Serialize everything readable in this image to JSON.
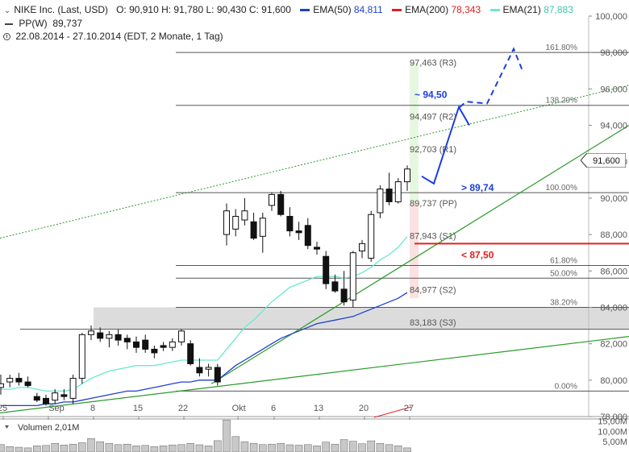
{
  "header": {
    "symbol": "NIKE Inc. (Last, USD)",
    "ohlc": "O: 90,910  H: 91,780  L: 90,430  C: 91,600",
    "ema50_label": "EMA(50)",
    "ema50_value": "84,811",
    "ema200_label": "EMA(200)",
    "ema200_value": "78,343",
    "ema21_label": "EMA(21)",
    "ema21_value": "87,883",
    "pp_label": "PP(W)",
    "pp_value": "89,737",
    "range": "22.08.2014 - 27.10.2014 (EDT, 2 Monate, 1 Tag)"
  },
  "colors": {
    "ema50": "#1f3fd0",
    "ema200": "#e02020",
    "ema21": "#6be8d0",
    "up_candle": "#ffffff",
    "down_candle": "#111111",
    "trend_green": "#2a9a2a",
    "projection": "#1a3fe0"
  },
  "chart_data": {
    "type": "candlestick",
    "y_axis": {
      "min": 78000,
      "max": 100000,
      "ticks": [
        "100,000",
        "98,000",
        "96,000",
        "94,000",
        "92,000",
        "90,000",
        "88,000",
        "86,000",
        "84,000",
        "82,000",
        "80,000",
        "78,000"
      ],
      "tick_values": [
        100000,
        98000,
        96000,
        94000,
        92000,
        90000,
        88000,
        86000,
        84000,
        82000,
        80000,
        78000
      ]
    },
    "x_labels": [
      {
        "i": 0,
        "label": "25"
      },
      {
        "i": 5,
        "label": "Sep"
      },
      {
        "i": 10,
        "label": "8"
      },
      {
        "i": 15,
        "label": "15"
      },
      {
        "i": 20,
        "label": "22"
      },
      {
        "i": 26,
        "label": "Okt"
      },
      {
        "i": 30,
        "label": "6"
      },
      {
        "i": 35,
        "label": "13"
      },
      {
        "i": 40,
        "label": "20"
      },
      {
        "i": 45,
        "label": "27"
      }
    ],
    "candles": [
      {
        "o": 79600,
        "h": 80300,
        "l": 79200,
        "c": 79800
      },
      {
        "o": 79900,
        "h": 80300,
        "l": 79600,
        "c": 80100
      },
      {
        "o": 80100,
        "h": 80400,
        "l": 79700,
        "c": 79900
      },
      {
        "o": 79900,
        "h": 80200,
        "l": 79600,
        "c": 79700
      },
      {
        "o": 79100,
        "h": 79300,
        "l": 78800,
        "c": 78900
      },
      {
        "o": 79000,
        "h": 79200,
        "l": 78600,
        "c": 78700
      },
      {
        "o": 78900,
        "h": 79500,
        "l": 78700,
        "c": 79300
      },
      {
        "o": 79200,
        "h": 79500,
        "l": 78900,
        "c": 79100
      },
      {
        "o": 79000,
        "h": 80300,
        "l": 78700,
        "c": 80100
      },
      {
        "o": 80100,
        "h": 82600,
        "l": 79800,
        "c": 82500
      },
      {
        "o": 82500,
        "h": 83000,
        "l": 82200,
        "c": 82700
      },
      {
        "o": 82600,
        "h": 82900,
        "l": 82100,
        "c": 82300
      },
      {
        "o": 82300,
        "h": 82700,
        "l": 81800,
        "c": 82500
      },
      {
        "o": 82500,
        "h": 82800,
        "l": 81900,
        "c": 82200
      },
      {
        "o": 82300,
        "h": 82500,
        "l": 81700,
        "c": 82100
      },
      {
        "o": 82100,
        "h": 82400,
        "l": 81500,
        "c": 81800
      },
      {
        "o": 82200,
        "h": 82500,
        "l": 81500,
        "c": 81700
      },
      {
        "o": 81700,
        "h": 81900,
        "l": 81200,
        "c": 81500
      },
      {
        "o": 81900,
        "h": 82100,
        "l": 81600,
        "c": 81800
      },
      {
        "o": 81800,
        "h": 82300,
        "l": 81600,
        "c": 82100
      },
      {
        "o": 82100,
        "h": 82800,
        "l": 81900,
        "c": 82700
      },
      {
        "o": 82000,
        "h": 82200,
        "l": 80800,
        "c": 80900
      },
      {
        "o": 80700,
        "h": 81200,
        "l": 80200,
        "c": 80400
      },
      {
        "o": 80600,
        "h": 80900,
        "l": 80200,
        "c": 80700
      },
      {
        "o": 80700,
        "h": 80900,
        "l": 79700,
        "c": 79900
      },
      {
        "o": 88000,
        "h": 89700,
        "l": 87400,
        "c": 89300
      },
      {
        "o": 88300,
        "h": 89400,
        "l": 87900,
        "c": 89000
      },
      {
        "o": 88800,
        "h": 90000,
        "l": 88500,
        "c": 89300
      },
      {
        "o": 88700,
        "h": 89200,
        "l": 87700,
        "c": 87800
      },
      {
        "o": 87900,
        "h": 89200,
        "l": 87000,
        "c": 88900
      },
      {
        "o": 89600,
        "h": 90300,
        "l": 89300,
        "c": 90200
      },
      {
        "o": 90200,
        "h": 90400,
        "l": 89000,
        "c": 89100
      },
      {
        "o": 89000,
        "h": 89500,
        "l": 87900,
        "c": 88200
      },
      {
        "o": 88200,
        "h": 88700,
        "l": 87700,
        "c": 88100
      },
      {
        "o": 88500,
        "h": 88900,
        "l": 87200,
        "c": 87400
      },
      {
        "o": 87300,
        "h": 87600,
        "l": 86900,
        "c": 87200
      },
      {
        "o": 86800,
        "h": 87100,
        "l": 85000,
        "c": 85300
      },
      {
        "o": 85400,
        "h": 85800,
        "l": 84800,
        "c": 84900
      },
      {
        "o": 85000,
        "h": 86000,
        "l": 84100,
        "c": 84300
      },
      {
        "o": 84400,
        "h": 87100,
        "l": 84000,
        "c": 87000
      },
      {
        "o": 87100,
        "h": 87700,
        "l": 86700,
        "c": 87500
      },
      {
        "o": 86700,
        "h": 89300,
        "l": 86500,
        "c": 89100
      },
      {
        "o": 89200,
        "h": 90700,
        "l": 88900,
        "c": 90500
      },
      {
        "o": 90500,
        "h": 91400,
        "l": 89600,
        "c": 89800
      },
      {
        "o": 89800,
        "h": 91100,
        "l": 89700,
        "c": 90900
      },
      {
        "o": 90900,
        "h": 91800,
        "l": 90400,
        "c": 91600
      }
    ],
    "ema21": [
      79500,
      79500,
      79600,
      79600,
      79500,
      79400,
      79400,
      79400,
      79500,
      79800,
      80100,
      80300,
      80500,
      80600,
      80700,
      80800,
      80800,
      80800,
      80900,
      81000,
      81100,
      81100,
      81100,
      81100,
      81100,
      81700,
      82300,
      82900,
      83300,
      83800,
      84300,
      84700,
      85100,
      85300,
      85500,
      85700,
      85700,
      85700,
      85600,
      85700,
      85900,
      86200,
      86600,
      86900,
      87300,
      87883
    ],
    "ema50": [
      78600,
      78600,
      78600,
      78600,
      78600,
      78700,
      78700,
      78800,
      78800,
      78900,
      79000,
      79100,
      79200,
      79300,
      79400,
      79400,
      79500,
      79600,
      79700,
      79800,
      79900,
      79900,
      80000,
      80000,
      80000,
      80400,
      80800,
      81100,
      81400,
      81700,
      82000,
      82300,
      82500,
      82700,
      82900,
      83100,
      83200,
      83300,
      83400,
      83500,
      83700,
      83900,
      84100,
      84300,
      84500,
      84811
    ]
  },
  "annotations": {
    "fib_labels": [
      "161.80%",
      "138.20%",
      "100.00%",
      "61.80%",
      "50.00%",
      "38.20%",
      "0.00%"
    ],
    "fib_values": [
      98000,
      95100,
      90300,
      86300,
      85600,
      84000,
      79400
    ],
    "pivot_labels": [
      "97,463 (R3)",
      "94,497 (R2)",
      "92,703 (R1)",
      "89,737 (PP)",
      "87,943 (S1)",
      "84,977 (S2)",
      "83,183 (S3)"
    ],
    "pivot_values": [
      97463,
      94497,
      92703,
      89737,
      87943,
      84977,
      83183
    ],
    "target_label": "~ 94,50",
    "above_label": "> 89,74",
    "below_label": "< 87,50",
    "last_price": "91,600"
  },
  "volume": {
    "title": "Volumen",
    "value": "2,01M",
    "ticks": [
      "15,00M",
      "10,00M",
      "5,00M"
    ],
    "tick_values": [
      15,
      10,
      5
    ],
    "values_m": [
      3.6,
      2.6,
      2.3,
      2.0,
      3.0,
      3.2,
      4.2,
      3.4,
      3.8,
      4.5,
      6.5,
      5.0,
      4.2,
      3.6,
      3.8,
      3.0,
      3.2,
      2.6,
      3.0,
      3.4,
      3.6,
      4.2,
      3.5,
      3.0,
      5.5,
      15.5,
      7.5,
      5.0,
      4.2,
      3.6,
      3.8,
      4.2,
      3.5,
      3.3,
      3.6,
      3.0,
      4.8,
      3.8,
      6.0,
      5.2,
      4.0,
      5.4,
      4.2,
      3.6,
      3.0,
      2.0
    ]
  }
}
